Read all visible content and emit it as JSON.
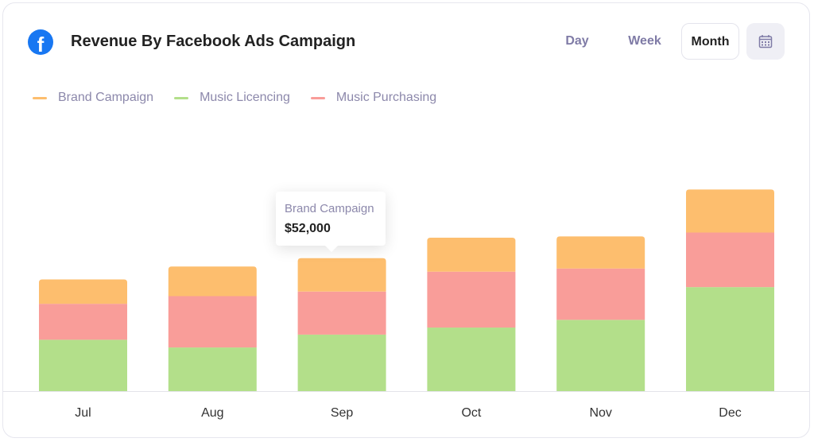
{
  "header": {
    "title": "Revenue By Facebook Ads Campaign",
    "icon": "facebook-icon",
    "periods": [
      "Day",
      "Week",
      "Month"
    ],
    "active_period": "Month",
    "calendar_icon": "calendar-icon"
  },
  "tooltip": {
    "series": "Brand Campaign",
    "value": "$52,000"
  },
  "chart_data": {
    "type": "bar",
    "stacked": true,
    "title": "",
    "xlabel": "",
    "ylabel": "",
    "grid": false,
    "legend": "top-left",
    "categories": [
      "Jul",
      "Aug",
      "Sep",
      "Oct",
      "Nov",
      "Dec"
    ],
    "series": [
      {
        "name": "Brand Campaign",
        "color": "#fdbe6e",
        "values": [
          38000,
          46000,
          52000,
          53000,
          50000,
          67000
        ]
      },
      {
        "name": "Music Licencing",
        "color": "#b3df8a",
        "values": [
          80000,
          68000,
          88000,
          99000,
          111000,
          162000
        ]
      },
      {
        "name": "Music Purchasing",
        "color": "#f99d99",
        "values": [
          56000,
          80000,
          67000,
          87000,
          80000,
          85000
        ]
      }
    ],
    "stack_order_bottom_to_top": [
      "Music Licencing",
      "Music Purchasing",
      "Brand Campaign"
    ]
  }
}
